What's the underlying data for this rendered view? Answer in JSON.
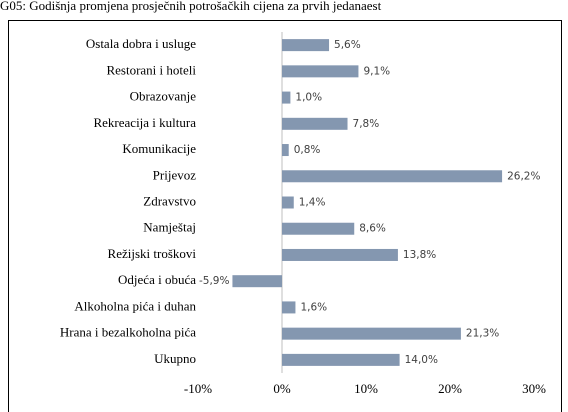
{
  "chart_data": {
    "type": "bar",
    "orientation": "horizontal",
    "title": "G05: Godišnja promjena prosječnih potrošačkih cijena za prvih jedanaest",
    "categories": [
      "Ostala dobra i usluge",
      "Restorani i hoteli",
      "Obrazovanje",
      "Rekreacija i kultura",
      "Komunikacije",
      "Prijevoz",
      "Zdravstvo",
      "Namještaj",
      "Režijski troškovi",
      "Odjeća i obuća",
      "Alkoholna pića i duhan",
      "Hrana i bezalkoholna pića",
      "Ukupno"
    ],
    "values": [
      5.6,
      9.1,
      1.0,
      7.8,
      0.8,
      26.2,
      1.4,
      8.6,
      13.8,
      -5.9,
      1.6,
      21.3,
      14.0
    ],
    "value_labels": [
      "5,6%",
      "9,1%",
      "1,0%",
      "7,8%",
      "0,8%",
      "26,2%",
      "1,4%",
      "8,6%",
      "13,8%",
      "-5,9%",
      "1,6%",
      "21,3%",
      "14,0%"
    ],
    "color": "#8497b0",
    "xlim": [
      -10,
      30
    ],
    "xticks": [
      {
        "value": -10,
        "label": "-10%"
      },
      {
        "value": 0,
        "label": "0%"
      },
      {
        "value": 10,
        "label": "10%"
      },
      {
        "value": 20,
        "label": "20%"
      },
      {
        "value": 30,
        "label": "30%"
      }
    ],
    "grid": false
  }
}
